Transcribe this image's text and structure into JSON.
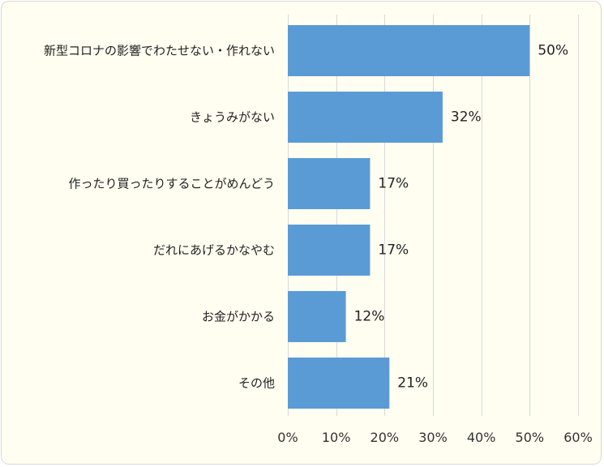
{
  "chart_data": {
    "type": "bar",
    "orientation": "horizontal",
    "categories": [
      "新型コロナの影響でわたせない・作れない",
      "きょうみがない",
      "作ったり買ったりすることがめんどう",
      "だれにあげるかなやむ",
      "お金がかかる",
      "その他"
    ],
    "values": [
      50,
      32,
      17,
      17,
      12,
      21
    ],
    "value_labels": [
      "50%",
      "32%",
      "17%",
      "17%",
      "12%",
      "21%"
    ],
    "xlim": [
      0,
      60
    ],
    "xticks": [
      0,
      10,
      20,
      30,
      40,
      50,
      60
    ],
    "xtick_labels": [
      "0%",
      "10%",
      "20%",
      "30%",
      "40%",
      "50%",
      "60%"
    ],
    "grid": true,
    "legend": "none",
    "colors": {
      "bar": "#5b9bd5",
      "background": "#fffef1",
      "grid": "#d9d9d9"
    }
  }
}
